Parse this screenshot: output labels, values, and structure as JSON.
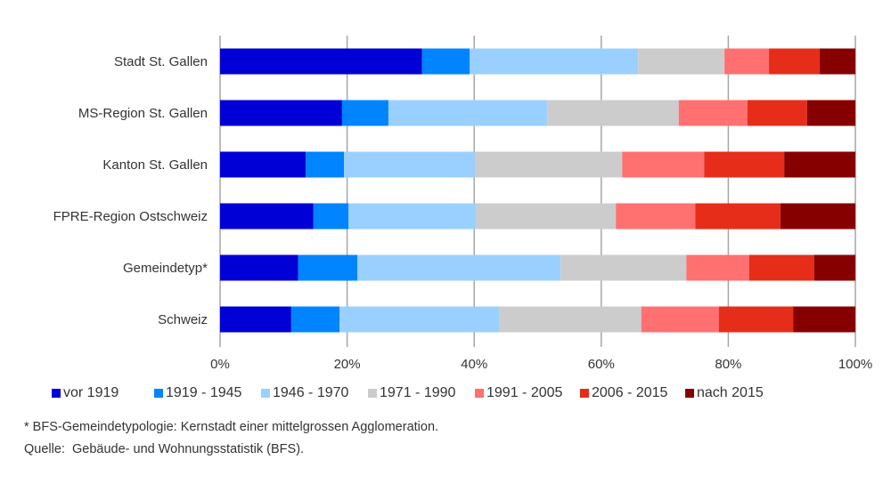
{
  "chart_data": {
    "type": "bar",
    "orientation": "horizontal",
    "stacked": true,
    "title": "",
    "xlabel": "",
    "ylabel": "",
    "xlim": [
      0,
      100
    ],
    "x_ticks": [
      "0%",
      "20%",
      "40%",
      "60%",
      "80%",
      "100%"
    ],
    "grid": true,
    "legend_position": "bottom",
    "categories": [
      "Stadt St. Gallen",
      "MS-Region St. Gallen",
      "Kanton St. Gallen",
      "FPRE-Region Ostschweiz",
      "Gemeindetyp*",
      "Schweiz"
    ],
    "series": [
      {
        "name": "vor 1919",
        "color": "#0000d6",
        "values": [
          31.8,
          19.2,
          13.5,
          14.7,
          12.3,
          11.2
        ]
      },
      {
        "name": "1919 - 1945",
        "color": "#0084ff",
        "values": [
          7.5,
          7.3,
          6.0,
          5.5,
          9.3,
          7.6
        ]
      },
      {
        "name": "1946 - 1970",
        "color": "#9ad0ff",
        "values": [
          26.5,
          25.0,
          20.6,
          20.1,
          32.0,
          25.2
        ]
      },
      {
        "name": "1971 - 1990",
        "color": "#cccccc",
        "values": [
          13.6,
          20.7,
          23.2,
          22.0,
          19.8,
          22.3
        ]
      },
      {
        "name": "1991 - 2005",
        "color": "#ff7070",
        "values": [
          7.0,
          10.8,
          12.9,
          12.5,
          9.9,
          12.2
        ]
      },
      {
        "name": "2006 - 2015",
        "color": "#e62d1a",
        "values": [
          8.0,
          9.4,
          12.6,
          13.4,
          10.2,
          11.7
        ]
      },
      {
        "name": "nach 2015",
        "color": "#870000",
        "values": [
          5.6,
          7.6,
          11.2,
          11.8,
          6.5,
          9.8
        ]
      }
    ],
    "footnotes": [
      "* BFS-Gemeindetypologie: Kernstadt einer mittelgrossen Agglomeration.",
      "Quelle:  Gebäude- und Wohnungsstatistik (BFS)."
    ]
  }
}
